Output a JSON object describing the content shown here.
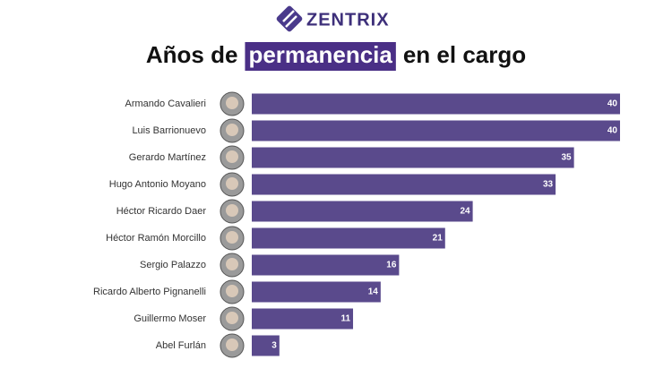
{
  "logo": "ZENTRIX",
  "chart_data": {
    "type": "bar",
    "orientation": "horizontal",
    "title": {
      "before": "Años de",
      "highlight": "permanencia",
      "after": "en el cargo"
    },
    "categories": [
      "Armando Cavalieri",
      "Luis Barrionuevo",
      "Gerardo Martínez",
      "Hugo Antonio Moyano",
      "Héctor Ricardo Daer",
      "Héctor Ramón Morcillo",
      "Sergio Palazzo",
      "Ricardo Alberto Pignanelli",
      "Guillermo Moser",
      "Abel Furlán"
    ],
    "values": [
      40,
      40,
      35,
      33,
      24,
      21,
      16,
      14,
      11,
      3
    ],
    "color": "#5a4a8c",
    "highlight_color": "#4a2f86"
  }
}
